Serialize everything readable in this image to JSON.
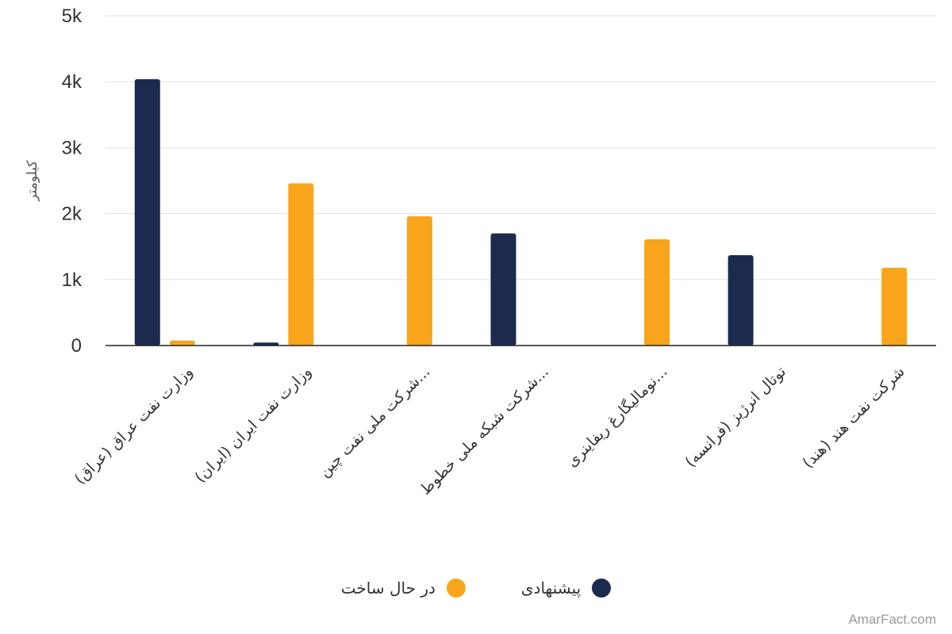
{
  "chart_data": {
    "type": "bar",
    "ylabel": "کیلومتر",
    "xlabel": "",
    "ylim": [
      0,
      5000
    ],
    "yticks": [
      0,
      1000,
      2000,
      3000,
      4000,
      5000
    ],
    "ytick_labels": [
      "0",
      "1k",
      "2k",
      "3k",
      "4k",
      "5k"
    ],
    "grid": true,
    "legend_position": "bottom",
    "categories": [
      "وزارت نفت عراق (عراق)",
      "وزارت نفت ایران (ایران)",
      "شرکت ملی نفت چین...",
      "شرکت شبکه ملی خطوط...",
      "نومالیگارغ ریفاینری...",
      "توتال انرژیز (فرانسه)",
      "شرکت نفت هند (هند)"
    ],
    "series": [
      {
        "name": "پیشنهادی",
        "color": "#1b2a4e",
        "values": [
          4040,
          45,
          0,
          1700,
          0,
          1370,
          0
        ]
      },
      {
        "name": "در حال ساخت",
        "color": "#f8a51b",
        "values": [
          75,
          2460,
          1960,
          0,
          1610,
          0,
          1180
        ]
      }
    ]
  },
  "watermark": "AmarFact.com"
}
